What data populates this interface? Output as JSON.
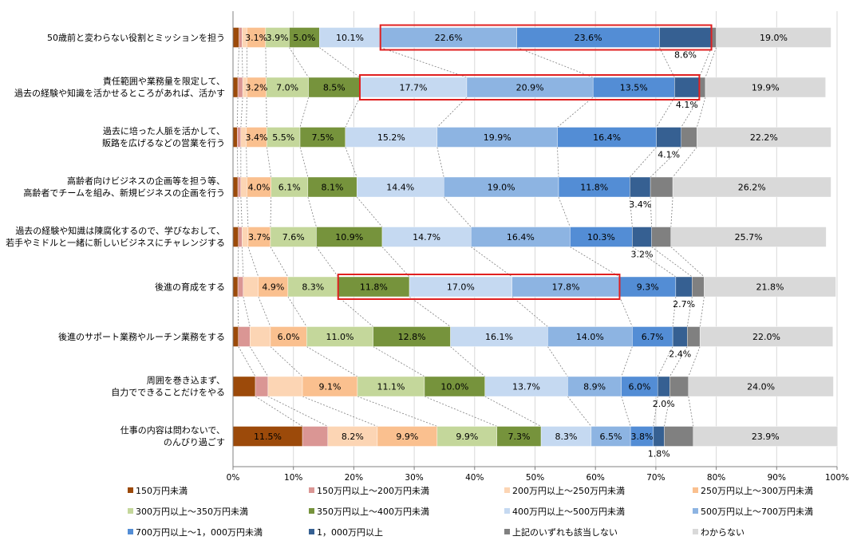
{
  "chart_data": {
    "type": "bar",
    "orientation": "horizontal",
    "stacked": true,
    "percent": true,
    "xlim": [
      0,
      100
    ],
    "x_ticks": [
      "0%",
      "10%",
      "20%",
      "30%",
      "40%",
      "50%",
      "60%",
      "70%",
      "80%",
      "90%",
      "100%"
    ],
    "categories": [
      [
        "50歳前と変わらない役割とミッションを担う"
      ],
      [
        "責任範囲や業務量を限定して、",
        "過去の経験や知識を活かせるところがあれば、活かす"
      ],
      [
        "過去に培った人脈を活かして、",
        "販路を広げるなどの営業を行う"
      ],
      [
        "高齢者向けビジネスの企画等を担う等、",
        "高齢者でチームを組み、新規ビジネスの企画を行う"
      ],
      [
        "過去の経験や知識は陳腐化するので、学びなおして、",
        "若手やミドルと一緒に新しいビジネスにチャレンジする"
      ],
      [
        "後進の育成をする"
      ],
      [
        "後進のサポート業務やルーチン業務をする"
      ],
      [
        "周囲を巻き込まず、",
        "自力でできることだけをやる"
      ],
      [
        "仕事の内容は問わないで、",
        "のんびり過ごす"
      ]
    ],
    "series": [
      {
        "name": "150万円未満",
        "color": "#9C4A0A",
        "values": [
          1.0,
          0.8,
          0.7,
          0.8,
          0.9,
          0.8,
          0.9,
          3.7,
          11.5
        ]
      },
      {
        "name": "150万円以上～200万円未満",
        "color": "#DA9694",
        "values": [
          0.5,
          0.8,
          0.6,
          0.5,
          0.6,
          0.9,
          1.9,
          2.1,
          4.2
        ]
      },
      {
        "name": "200万円以上～250万円未満",
        "color": "#FCD5B4",
        "values": [
          0.8,
          0.7,
          0.9,
          1.0,
          1.0,
          2.5,
          3.4,
          5.7,
          8.2
        ]
      },
      {
        "name": "250万円以上～300万円未満",
        "color": "#FAC08F",
        "values": [
          3.1,
          3.2,
          3.4,
          4.0,
          3.7,
          4.9,
          6.0,
          9.1,
          9.9
        ]
      },
      {
        "name": "300万円以上～350万円未満",
        "color": "#C4D79B",
        "values": [
          3.9,
          7.0,
          5.5,
          6.1,
          7.6,
          8.3,
          11.0,
          11.1,
          9.9
        ]
      },
      {
        "name": "350万円以上～400万円未満",
        "color": "#76933C",
        "values": [
          5.0,
          8.5,
          7.5,
          8.1,
          10.9,
          11.8,
          12.8,
          10.0,
          7.3
        ]
      },
      {
        "name": "400万円以上～500万円未満",
        "color": "#C5D9F1",
        "values": [
          10.1,
          17.7,
          15.2,
          14.4,
          14.7,
          17.0,
          16.1,
          13.7,
          8.3
        ]
      },
      {
        "name": "500万円以上～700万円未満",
        "color": "#8DB4E2",
        "values": [
          22.6,
          20.9,
          19.9,
          19.0,
          16.4,
          17.8,
          14.0,
          8.9,
          6.5
        ]
      },
      {
        "name": "700万円以上～1，000万円未満",
        "color": "#538DD5",
        "values": [
          23.6,
          13.5,
          16.4,
          11.8,
          10.3,
          9.3,
          6.7,
          6.0,
          3.8
        ]
      },
      {
        "name": "1，000万円以上",
        "color": "#366092",
        "values": [
          8.6,
          4.1,
          4.1,
          3.4,
          3.2,
          2.7,
          2.4,
          2.0,
          1.8
        ]
      },
      {
        "name": "上記のいずれも該当しない",
        "color": "#808080",
        "values": [
          0.8,
          1.0,
          2.6,
          3.7,
          3.2,
          2.0,
          2.1,
          3.1,
          4.8
        ]
      },
      {
        "name": "わからない",
        "color": "#D9D9D9",
        "values": [
          19.0,
          19.9,
          22.2,
          26.2,
          25.7,
          21.8,
          22.0,
          24.0,
          23.9
        ]
      }
    ],
    "labels_shown": [
      [
        null,
        null,
        null,
        "3.1%",
        "3.9%",
        "5.0%",
        "10.1%",
        "22.6%",
        "23.6%",
        "8.6%",
        null,
        "19.0%"
      ],
      [
        null,
        null,
        null,
        "3.2%",
        "7.0%",
        "8.5%",
        "17.7%",
        "20.9%",
        "13.5%",
        "4.1%",
        null,
        "19.9%"
      ],
      [
        null,
        null,
        null,
        "3.4%",
        "5.5%",
        "7.5%",
        "15.2%",
        "19.9%",
        "16.4%",
        "4.1%",
        null,
        "22.2%"
      ],
      [
        null,
        null,
        null,
        "4.0%",
        "6.1%",
        "8.1%",
        "14.4%",
        "19.0%",
        "11.8%",
        "3.4%",
        null,
        "26.2%"
      ],
      [
        null,
        null,
        null,
        "3.7%",
        "7.6%",
        "10.9%",
        "14.7%",
        "16.4%",
        "10.3%",
        "3.2%",
        null,
        "25.7%"
      ],
      [
        null,
        null,
        null,
        "4.9%",
        "8.3%",
        "11.8%",
        "17.0%",
        "17.8%",
        "9.3%",
        "2.7%",
        null,
        "21.8%"
      ],
      [
        null,
        null,
        null,
        "6.0%",
        "11.0%",
        "12.8%",
        "16.1%",
        "14.0%",
        "6.7%",
        "2.4%",
        null,
        "22.0%"
      ],
      [
        null,
        null,
        null,
        "9.1%",
        "11.1%",
        "10.0%",
        "13.7%",
        "8.9%",
        "6.0%",
        "2.0%",
        null,
        "24.0%"
      ],
      [
        "11.5%",
        null,
        "8.2%",
        "9.9%",
        "9.9%",
        "7.3%",
        "8.3%",
        "6.5%",
        "3.8%",
        "1.8%",
        null,
        "23.9%"
      ]
    ],
    "outside_label_series": 9,
    "highlights": [
      {
        "row": 0,
        "from_series": 7,
        "to_series": 9,
        "color": "#E02020"
      },
      {
        "row": 1,
        "from_series": 6,
        "to_series": 9,
        "color": "#E02020"
      },
      {
        "row": 5,
        "from_series": 5,
        "to_series": 7,
        "color": "#E02020"
      }
    ],
    "legend_position": "bottom",
    "grid": true
  }
}
